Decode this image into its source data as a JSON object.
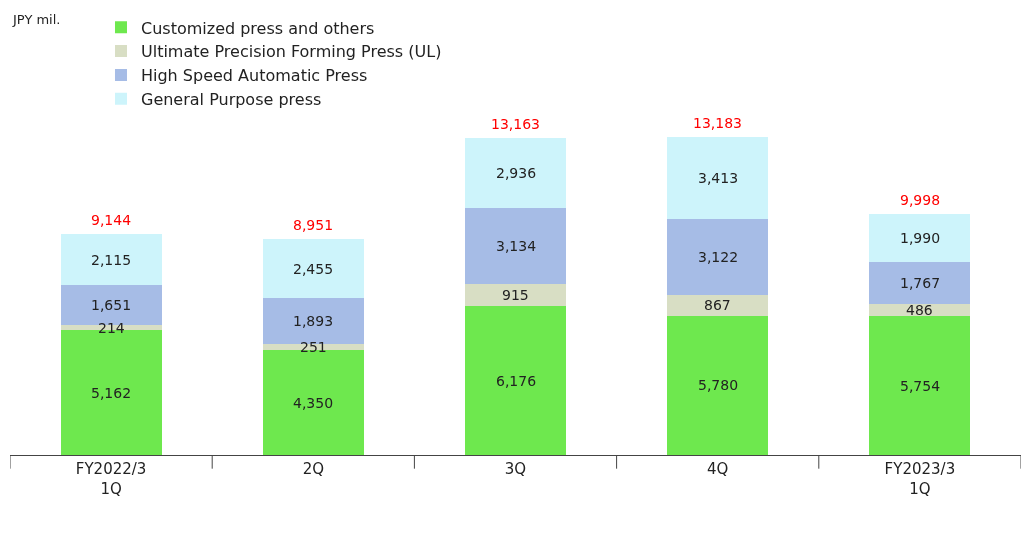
{
  "chart_data": {
    "type": "bar",
    "stacked": true,
    "annotations": [
      "JPY mil."
    ],
    "categories": [
      "FY2022/3\n1Q",
      "2Q",
      "3Q",
      "4Q",
      "FY2023/3\n1Q"
    ],
    "series": [
      {
        "name": "Customized press and others",
        "color": "#6ee84e",
        "values": [
          5162,
          4350,
          6176,
          5780,
          5754
        ],
        "value_labels": [
          "5,162",
          "4,350",
          "6,176",
          "5,780",
          "5,754"
        ]
      },
      {
        "name": "Ultimate Precision Forming Press (UL)",
        "color": "#d8dec4",
        "values": [
          214,
          251,
          915,
          867,
          486
        ],
        "value_labels": [
          "214",
          "251",
          "915",
          "867",
          "486"
        ]
      },
      {
        "name": "High Speed Automatic Press",
        "color": "#a6bce6",
        "values": [
          1651,
          1893,
          3134,
          3122,
          1767
        ],
        "value_labels": [
          "1,651",
          "1,893",
          "3,134",
          "3,122",
          "1,767"
        ]
      },
      {
        "name": "General Purpose press",
        "color": "#cdf4fb",
        "values": [
          2115,
          2455,
          2936,
          3413,
          1990
        ],
        "value_labels": [
          "2,115",
          "2,455",
          "2,936",
          "3,413",
          "1,990"
        ]
      }
    ],
    "totals": [
      "9,144",
      "8,951",
      "13,163",
      "13,183",
      "9,998"
    ],
    "legend": "top"
  }
}
